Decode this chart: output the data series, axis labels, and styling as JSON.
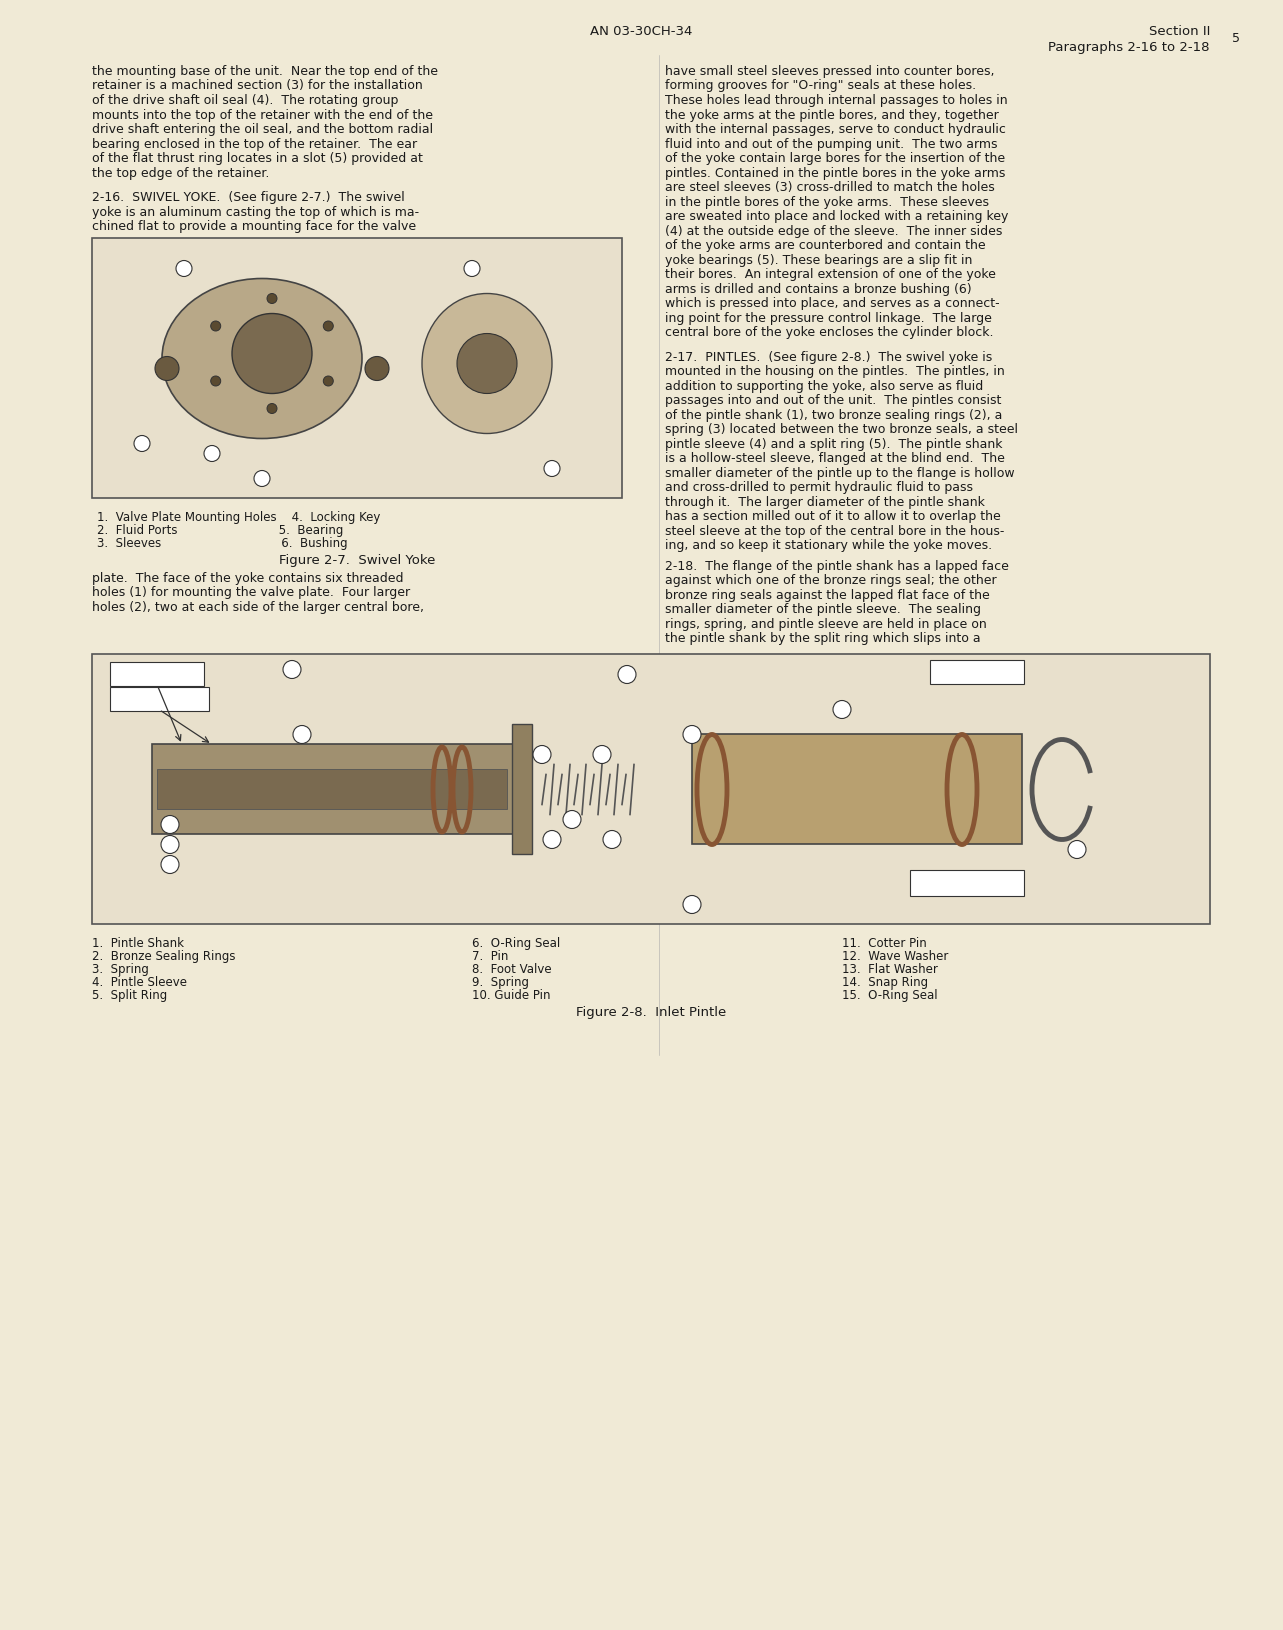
{
  "background_color": "#f0ead6",
  "page_number": "5",
  "header_center": "AN 03-30CH-34",
  "header_right_line1": "Section II",
  "header_right_line2": "Paragraphs 2-16 to 2-18",
  "left_col_texts": [
    "the mounting base of the unit.  Near the top end of the",
    "retainer is a machined section (3) for the installation",
    "of the drive shaft oil seal (4).  The rotating group",
    "mounts into the top of the retainer with the end of the",
    "drive shaft entering the oil seal, and the bottom radial",
    "bearing enclosed in the top of the retainer.  The ear",
    "of the flat thrust ring locates in a slot (5) provided at",
    "the top edge of the retainer."
  ],
  "right_col_texts": [
    "have small steel sleeves pressed into counter bores,",
    "forming grooves for \"O-ring\" seals at these holes.",
    "These holes lead through internal passages to holes in",
    "the yoke arms at the pintle bores, and they, together",
    "with the internal passages, serve to conduct hydraulic",
    "fluid into and out of the pumping unit.  The two arms",
    "of the yoke contain large bores for the insertion of the",
    "pintles. Contained in the pintle bores in the yoke arms",
    "are steel sleeves (3) cross-drilled to match the holes",
    "in the pintle bores of the yoke arms.  These sleeves",
    "are sweated into place and locked with a retaining key",
    "(4) at the outside edge of the sleeve.  The inner sides",
    "of the yoke arms are counterbored and contain the",
    "yoke bearings (5). These bearings are a slip fit in",
    "their bores.  An integral extension of one of the yoke",
    "arms is drilled and contains a bronze bushing (6)",
    "which is pressed into place, and serves as a connect-",
    "ing point for the pressure control linkage.  The large",
    "central bore of the yoke encloses the cylinder block."
  ],
  "section_216_header": "2-16.  SWIVEL YOKE.  (See figure 2-7.)  The swivel",
  "section_216_text": [
    "yoke is an aluminum casting the top of which is ma-",
    "chined flat to provide a mounting face for the valve"
  ],
  "fig27_caption_items": [
    "1.  Valve Plate Mounting Holes    4.  Locking Key",
    "2.  Fluid Ports                           5.  Bearing",
    "3.  Sleeves                                6.  Bushing"
  ],
  "fig27_title": "Figure 2-7.  Swivel Yoke",
  "plate_text_after_fig27": [
    "plate.  The face of the yoke contains six threaded",
    "holes (1) for mounting the valve plate.  Four larger",
    "holes (2), two at each side of the larger central bore,"
  ],
  "section_217_header": "2-17.  PINTLES.  (See figure 2-8.)  The swivel yoke is",
  "section_217_texts": [
    "mounted in the housing on the pintles.  The pintles, in",
    "addition to supporting the yoke, also serve as fluid",
    "passages into and out of the unit.  The pintles consist",
    "of the pintle shank (1), two bronze sealing rings (2), a",
    "spring (3) located between the two bronze seals, a steel",
    "pintle sleeve (4) and a split ring (5).  The pintle shank",
    "is a hollow-steel sleeve, flanged at the blind end.  The",
    "smaller diameter of the pintle up to the flange is hollow",
    "and cross-drilled to permit hydraulic fluid to pass",
    "through it.  The larger diameter of the pintle shank",
    "has a section milled out of it to allow it to overlap the",
    "steel sleeve at the top of the central bore in the hous-",
    "ing, and so keep it stationary while the yoke moves."
  ],
  "section_218_header": "2-18.  The flange of the pintle shank has a lapped face",
  "section_218_texts": [
    "against which one of the bronze rings seal; the other",
    "bronze ring seals against the lapped flat face of the",
    "smaller diameter of the pintle sleeve.  The sealing",
    "rings, spring, and pintle sleeve are held in place on",
    "the pintle shank by the split ring which slips into a"
  ],
  "fig28_caption_col1": [
    "1.  Pintle Shank",
    "2.  Bronze Sealing Rings",
    "3.  Spring",
    "4.  Pintle Sleeve",
    "5.  Split Ring"
  ],
  "fig28_caption_col2": [
    "6.  O-Ring Seal",
    "7.  Pin",
    "8.  Foot Valve",
    "9.  Spring",
    "10. Guide Pin"
  ],
  "fig28_caption_col3": [
    "11.  Cotter Pin",
    "12.  Wave Washer",
    "13.  Flat Washer",
    "14.  Snap Ring",
    "15.  O-Ring Seal"
  ],
  "fig28_title": "Figure 2-8.  Inlet Pintle",
  "text_color": "#1a1a1a",
  "border_color": "#888888",
  "fig_bg_color": "#e8e0cc"
}
